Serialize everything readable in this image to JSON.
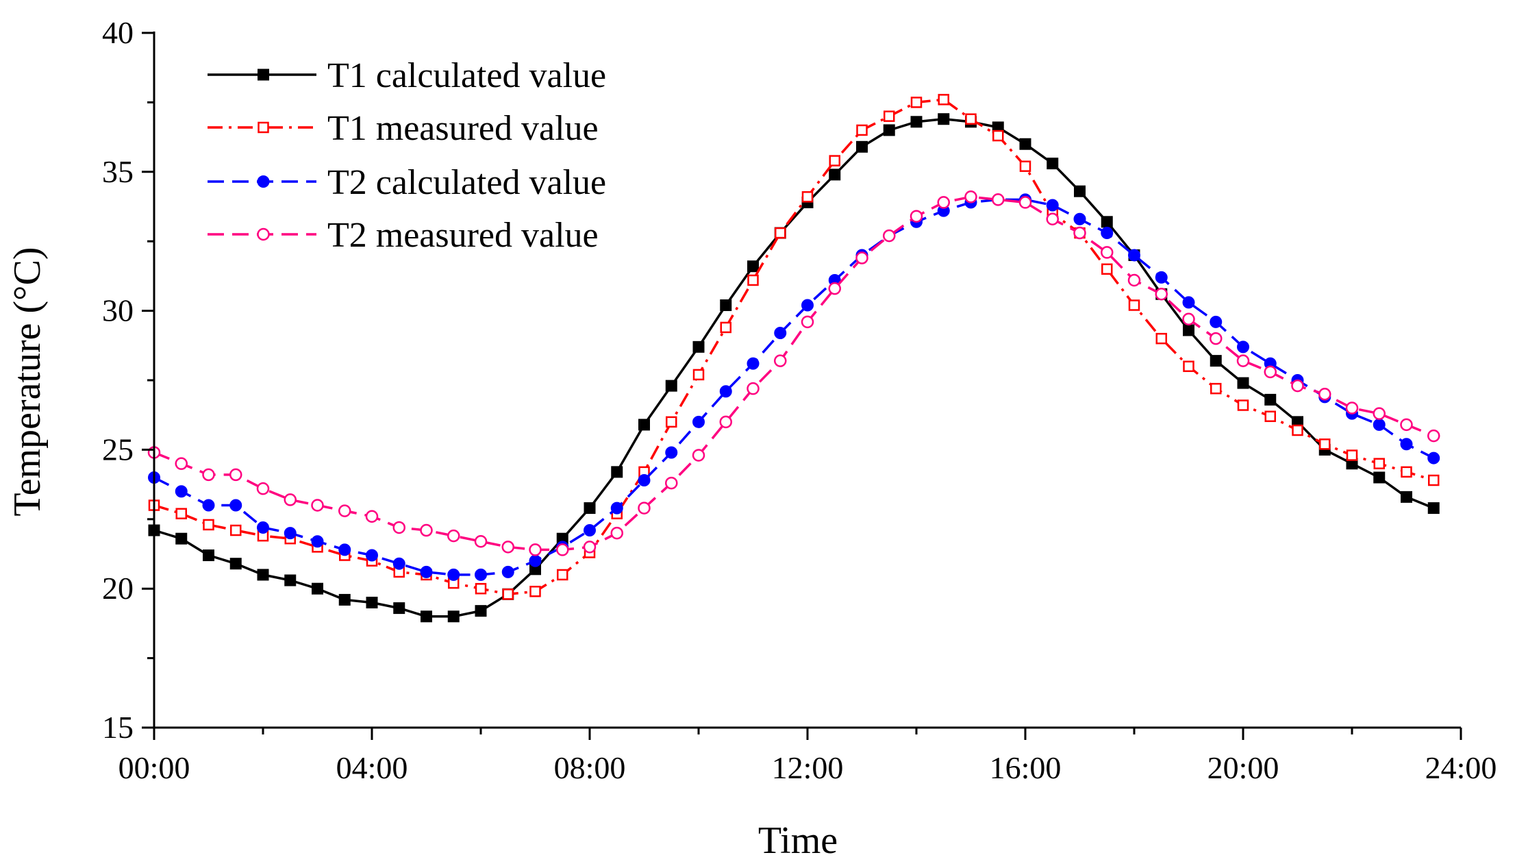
{
  "chart_data": {
    "type": "line",
    "title": "",
    "xlabel": "Time",
    "ylabel": "Temperature (°C)",
    "xlim": [
      0,
      24
    ],
    "ylim": [
      15,
      40
    ],
    "xticks": [
      "00:00",
      "04:00",
      "08:00",
      "12:00",
      "16:00",
      "20:00",
      "24:00"
    ],
    "yticks": [
      "15",
      "20",
      "25",
      "30",
      "35",
      "40"
    ],
    "legend_position": "top-left",
    "x": [
      0,
      0.5,
      1,
      1.5,
      2,
      2.5,
      3,
      3.5,
      4,
      4.5,
      5,
      5.5,
      6,
      6.5,
      7,
      7.5,
      8,
      8.5,
      9,
      9.5,
      10,
      10.5,
      11,
      11.5,
      12,
      12.5,
      13,
      13.5,
      14,
      14.5,
      15,
      15.5,
      16,
      16.5,
      17,
      17.5,
      18,
      18.5,
      19,
      19.5,
      20,
      20.5,
      21,
      21.5,
      22,
      22.5,
      23,
      23.5
    ],
    "series": [
      {
        "name": "T1 calculated value",
        "color": "#000000",
        "marker": "filled-square",
        "line_style": "solid",
        "values": [
          22.1,
          21.8,
          21.2,
          20.9,
          20.5,
          20.3,
          20.0,
          19.6,
          19.5,
          19.3,
          19.0,
          19.0,
          19.2,
          19.8,
          20.7,
          21.8,
          22.9,
          24.2,
          25.9,
          27.3,
          28.7,
          30.2,
          31.6,
          32.8,
          33.9,
          34.9,
          35.9,
          36.5,
          36.8,
          36.9,
          36.8,
          36.6,
          36.0,
          35.3,
          34.3,
          33.2,
          32.0,
          30.6,
          29.3,
          28.2,
          27.4,
          26.8,
          26.0,
          25.0,
          24.5,
          24.0,
          23.3,
          22.9
        ]
      },
      {
        "name": "T1 measured value",
        "color": "#ff0000",
        "marker": "open-square",
        "line_style": "dash-dot",
        "values": [
          23.0,
          22.7,
          22.3,
          22.1,
          21.9,
          21.8,
          21.5,
          21.2,
          21.0,
          20.6,
          20.5,
          20.2,
          20.0,
          19.8,
          19.9,
          20.5,
          21.3,
          22.7,
          24.2,
          26.0,
          27.7,
          29.4,
          31.1,
          32.8,
          34.1,
          35.4,
          36.5,
          37.0,
          37.5,
          37.6,
          36.9,
          36.3,
          35.2,
          33.5,
          32.8,
          31.5,
          30.2,
          29.0,
          28.0,
          27.2,
          26.6,
          26.2,
          25.7,
          25.2,
          24.8,
          24.5,
          24.2,
          23.9
        ]
      },
      {
        "name": "T2 calculated value",
        "color": "#0000ff",
        "marker": "filled-circle",
        "line_style": "dashed",
        "values": [
          24.0,
          23.5,
          23.0,
          23.0,
          22.2,
          22.0,
          21.7,
          21.4,
          21.2,
          20.9,
          20.6,
          20.5,
          20.5,
          20.6,
          21.0,
          21.5,
          22.1,
          22.9,
          23.9,
          24.9,
          26.0,
          27.1,
          28.1,
          29.2,
          30.2,
          31.1,
          32.0,
          32.7,
          33.2,
          33.6,
          33.9,
          34.0,
          34.0,
          33.8,
          33.3,
          32.8,
          32.0,
          31.2,
          30.3,
          29.6,
          28.7,
          28.1,
          27.5,
          26.9,
          26.3,
          25.9,
          25.2,
          24.7
        ]
      },
      {
        "name": "T2 measured value",
        "color": "#ff0080",
        "marker": "open-circle",
        "line_style": "dashed",
        "values": [
          24.9,
          24.5,
          24.1,
          24.1,
          23.6,
          23.2,
          23.0,
          22.8,
          22.6,
          22.2,
          22.1,
          21.9,
          21.7,
          21.5,
          21.4,
          21.4,
          21.5,
          22.0,
          22.9,
          23.8,
          24.8,
          26.0,
          27.2,
          28.2,
          29.6,
          30.8,
          31.9,
          32.7,
          33.4,
          33.9,
          34.1,
          34.0,
          33.9,
          33.3,
          32.8,
          32.1,
          31.1,
          30.6,
          29.7,
          29.0,
          28.2,
          27.8,
          27.3,
          27.0,
          26.5,
          26.3,
          25.9,
          25.5
        ]
      }
    ]
  }
}
